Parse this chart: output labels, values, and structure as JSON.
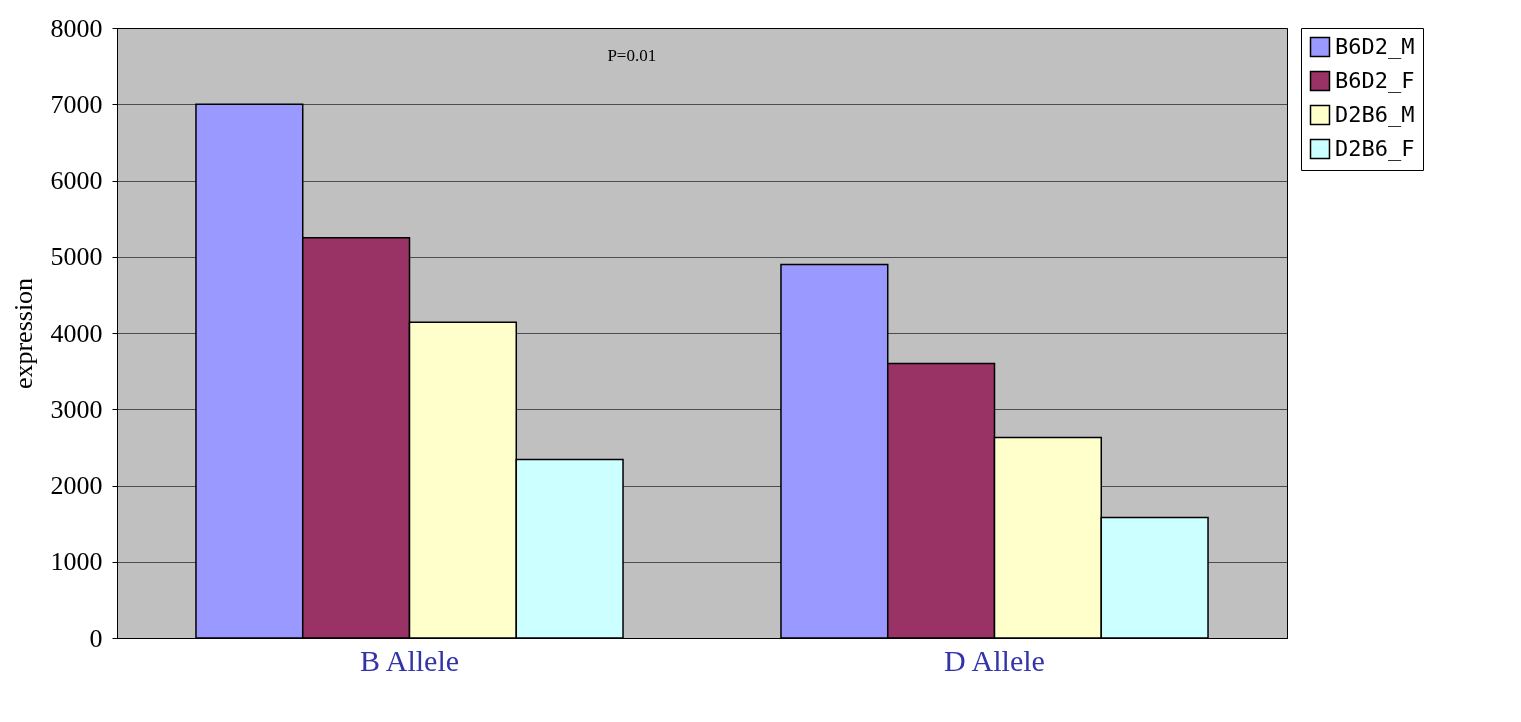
{
  "chart_data": {
    "type": "bar",
    "ylabel": "expression",
    "categories": [
      "B Allele",
      "D Allele"
    ],
    "series": [
      {
        "name": "B6D2_M",
        "color": "#9999ff",
        "values": [
          7000,
          4900
        ]
      },
      {
        "name": "B6D2_F",
        "color": "#993366",
        "values": [
          5250,
          3600
        ]
      },
      {
        "name": "D2B6_M",
        "color": "#ffffcc",
        "values": [
          4140,
          2630
        ]
      },
      {
        "name": "D2B6_F",
        "color": "#ccffff",
        "values": [
          2340,
          1580
        ]
      }
    ],
    "ylim": [
      0,
      8000
    ],
    "yticks": [
      0,
      1000,
      2000,
      3000,
      4000,
      5000,
      6000,
      7000,
      8000
    ],
    "grid": "y",
    "legend": "right",
    "annotations": [
      "P=0.01"
    ]
  }
}
